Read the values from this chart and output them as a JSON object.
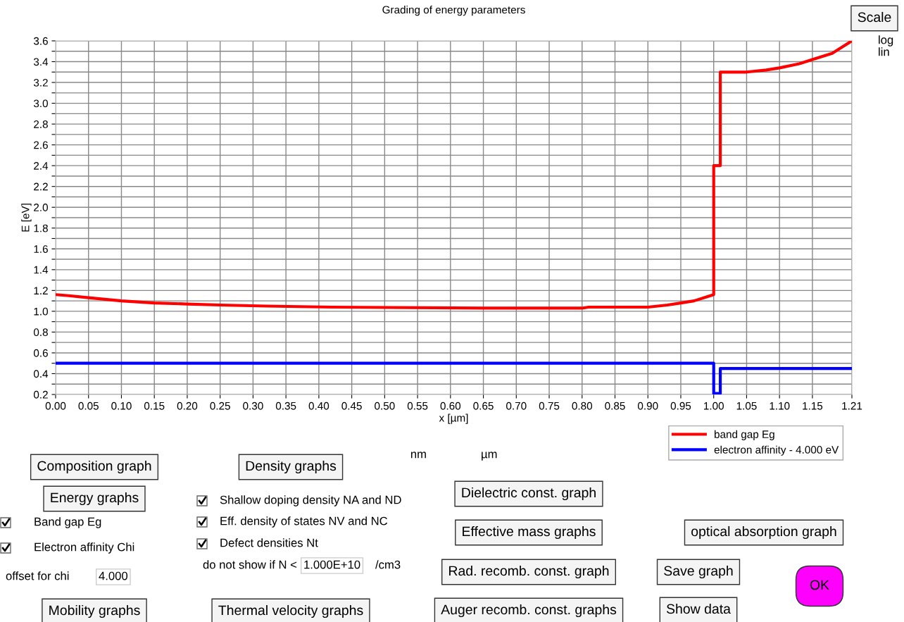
{
  "chart_data": {
    "type": "line",
    "title": "Grading of energy parameters",
    "xlabel": "x [µm]",
    "ylabel": "E [eV]",
    "xlim": [
      0,
      1.21
    ],
    "ylim": [
      0.2,
      3.6
    ],
    "xticks": [
      {
        "value": 0,
        "label": "0.00"
      },
      0.05,
      {
        "value": 0.1,
        "label": "0.10"
      },
      0.15,
      {
        "value": 0.2,
        "label": "0.20"
      },
      0.25,
      {
        "value": 0.3,
        "label": "0.30"
      },
      0.35,
      {
        "value": 0.4,
        "label": "0.40"
      },
      0.45,
      {
        "value": 0.5,
        "label": "0.50"
      },
      0.55,
      {
        "value": 0.6,
        "label": "0.60"
      },
      0.65,
      {
        "value": 0.7,
        "label": "0.70"
      },
      0.75,
      {
        "value": 0.8,
        "label": "0.80"
      },
      0.85,
      {
        "value": 0.9,
        "label": "0.90"
      },
      0.95,
      {
        "value": 1.0,
        "label": "1.00"
      },
      {
        "value": 1.05,
        "label": "1.05"
      },
      {
        "value": 1.1,
        "label": "1.10"
      },
      {
        "value": 1.15,
        "label": "1.15"
      },
      {
        "value": 1.21,
        "label": "1.21"
      }
    ],
    "yticks": [
      {
        "value": 0.2,
        "label": "0.2"
      },
      {
        "value": 0.3,
        "label": null
      },
      {
        "value": 0.4,
        "label": "0.4"
      },
      {
        "value": 0.5,
        "label": null
      },
      {
        "value": 0.6,
        "label": "0.6"
      },
      {
        "value": 0.7,
        "label": null
      },
      {
        "value": 0.8,
        "label": "0.8"
      },
      {
        "value": 0.9,
        "label": null
      },
      {
        "value": 1.0,
        "label": "1.0"
      },
      {
        "value": 1.1,
        "label": null
      },
      {
        "value": 1.2,
        "label": "1.2"
      },
      {
        "value": 1.3,
        "label": null
      },
      {
        "value": 1.4,
        "label": "1.4"
      },
      {
        "value": 1.5,
        "label": null
      },
      {
        "value": 1.6,
        "label": "1.6"
      },
      {
        "value": 1.7,
        "label": null
      },
      {
        "value": 1.8,
        "label": "1.8"
      },
      {
        "value": 1.9,
        "label": null
      },
      {
        "value": 2.0,
        "label": "2.0"
      },
      {
        "value": 2.1,
        "label": null
      },
      {
        "value": 2.2,
        "label": "2.2"
      },
      {
        "value": 2.3,
        "label": null
      },
      {
        "value": 2.4,
        "label": "2.4"
      },
      {
        "value": 2.5,
        "label": null
      },
      {
        "value": 2.6,
        "label": "2.6"
      },
      {
        "value": 2.7,
        "label": null
      },
      {
        "value": 2.8,
        "label": "2.8"
      },
      {
        "value": 2.9,
        "label": null
      },
      {
        "value": 3.0,
        "label": "3.0"
      },
      {
        "value": 3.1,
        "label": null
      },
      {
        "value": 3.2,
        "label": "3.2"
      },
      {
        "value": 3.3,
        "label": null
      },
      {
        "value": 3.4,
        "label": "3.4"
      },
      {
        "value": 3.5,
        "label": null
      },
      {
        "value": 3.6,
        "label": "3.6"
      }
    ],
    "grid": true,
    "legend": "bottom right",
    "marker": "none",
    "line_style": "solid",
    "series": [
      {
        "name": "band gap Eg",
        "color": "#ff0000",
        "x": [
          0,
          0.02,
          0.05,
          0.1,
          0.15,
          0.2,
          0.25,
          0.32,
          0.42,
          0.65,
          0.8,
          0.81,
          0.9,
          0.93,
          0.95,
          0.97,
          0.99,
          1.0,
          1.0,
          1.01,
          1.01,
          1.05,
          1.08,
          1.1,
          1.13,
          1.15,
          1.18,
          1.21
        ],
        "values": [
          1.16,
          1.15,
          1.13,
          1.1,
          1.08,
          1.07,
          1.06,
          1.05,
          1.04,
          1.03,
          1.03,
          1.04,
          1.04,
          1.06,
          1.08,
          1.1,
          1.14,
          1.16,
          2.4,
          2.4,
          3.3,
          3.3,
          3.32,
          3.34,
          3.38,
          3.42,
          3.48,
          3.6
        ]
      },
      {
        "name": "electron affinity - 4.000 eV",
        "color": "#0000ff",
        "x": [
          0,
          1.0,
          1.0,
          1.01,
          1.01,
          1.21
        ],
        "values": [
          0.5,
          0.5,
          0.21,
          0.21,
          0.45,
          0.45
        ]
      }
    ],
    "annotations": [
      "Scale",
      "log",
      "lin",
      "nm",
      "µm",
      "Composition graph",
      "Density graphs",
      "Energy graphs",
      "Shallow doping density NA and ND",
      "Band gap Eg",
      "Eff. density of states NV and NC",
      "Electron affinity Chi",
      "Defect densities Nt",
      "offset for chi",
      "4.000",
      "do not show if N <",
      "1.000E+10",
      "/cm3",
      "Dielectric const. graph",
      "Effective mass graphs",
      "optical absorption graph",
      "Rad. recomb. const. graph",
      "Save graph",
      "OK",
      "Mobility graphs",
      "Thermal velocity graphs",
      "Auger recomb. const. graphs",
      "Show data"
    ]
  }
}
